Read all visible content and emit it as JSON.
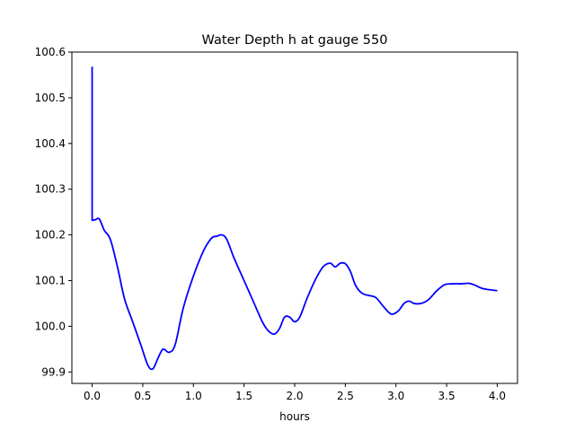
{
  "chart_data": {
    "type": "line",
    "title": "Water Depth h at gauge 550",
    "xlabel": "hours",
    "ylabel": "",
    "xlim": [
      -0.2,
      4.2
    ],
    "ylim": [
      99.875,
      100.6
    ],
    "x_ticks": [
      0.0,
      0.5,
      1.0,
      1.5,
      2.0,
      2.5,
      3.0,
      3.5,
      4.0
    ],
    "x_tick_labels": [
      "0.0",
      "0.5",
      "1.0",
      "1.5",
      "2.0",
      "2.5",
      "3.0",
      "3.5",
      "4.0"
    ],
    "y_ticks": [
      99.9,
      100.0,
      100.1,
      100.2,
      100.3,
      100.4,
      100.5,
      100.6
    ],
    "y_tick_labels": [
      "99.9",
      "100.0",
      "100.1",
      "100.2",
      "100.3",
      "100.4",
      "100.5",
      "100.6"
    ],
    "grid": false,
    "series": [
      {
        "color": "#0000ff",
        "x": [
          0.0,
          0.0,
          0.03,
          0.07,
          0.12,
          0.18,
          0.25,
          0.32,
          0.4,
          0.48,
          0.55,
          0.6,
          0.65,
          0.7,
          0.76,
          0.82,
          0.9,
          1.0,
          1.1,
          1.18,
          1.23,
          1.28,
          1.33,
          1.4,
          1.5,
          1.6,
          1.68,
          1.74,
          1.8,
          1.85,
          1.9,
          1.95,
          2.0,
          2.05,
          2.12,
          2.2,
          2.28,
          2.35,
          2.4,
          2.45,
          2.5,
          2.55,
          2.6,
          2.66,
          2.72,
          2.8,
          2.87,
          2.95,
          3.02,
          3.08,
          3.13,
          3.18,
          3.25,
          3.32,
          3.4,
          3.48,
          3.56,
          3.64,
          3.72,
          3.78,
          3.85,
          3.92,
          4.0
        ],
        "y": [
          100.568,
          100.232,
          100.233,
          100.235,
          100.21,
          100.19,
          100.13,
          100.06,
          100.01,
          99.96,
          99.915,
          99.907,
          99.93,
          99.95,
          99.943,
          99.96,
          100.04,
          100.11,
          100.165,
          100.193,
          100.197,
          100.2,
          100.19,
          100.15,
          100.1,
          100.05,
          100.01,
          99.99,
          99.983,
          99.995,
          100.02,
          100.02,
          100.01,
          100.02,
          100.06,
          100.1,
          100.13,
          100.138,
          100.13,
          100.138,
          100.137,
          100.12,
          100.09,
          100.073,
          100.068,
          100.063,
          100.045,
          100.027,
          100.033,
          100.05,
          100.055,
          100.05,
          100.05,
          100.058,
          100.077,
          100.091,
          100.093,
          100.093,
          100.094,
          100.09,
          100.083,
          100.08,
          100.078
        ]
      }
    ]
  }
}
